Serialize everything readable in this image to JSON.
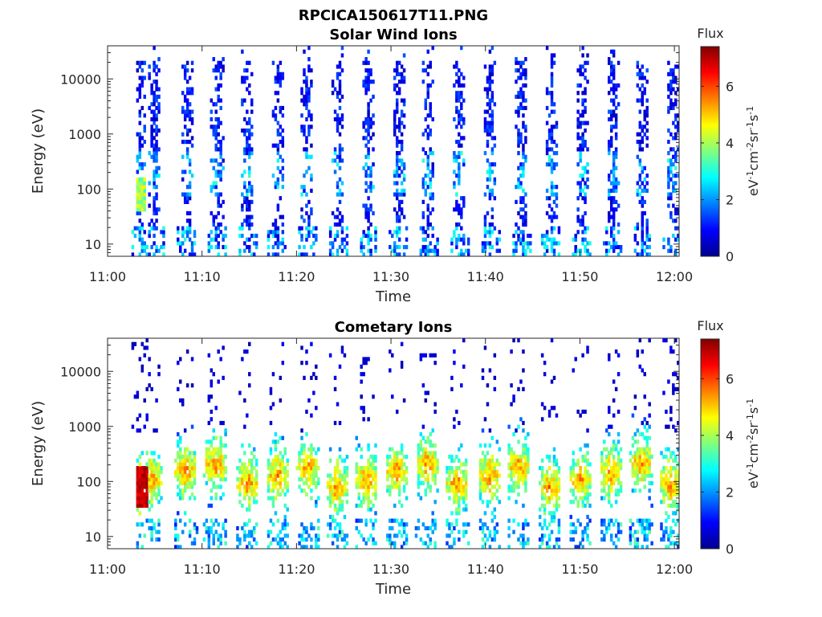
{
  "figure": {
    "title": "RPCICA150617T11.PNG"
  },
  "chart_data": [
    {
      "type": "heatmap",
      "title": "Solar Wind Ions",
      "xlabel": "Time",
      "ylabel": "Energy (eV)",
      "x_ticks": [
        "11:00",
        "11:10",
        "11:20",
        "11:30",
        "11:40",
        "11:50",
        "12:00"
      ],
      "x_range_minutes": [
        0,
        60.5
      ],
      "y_scale": "log",
      "y_ticks": [
        "10",
        "100",
        "1000",
        "10000"
      ],
      "y_range_eV": [
        6,
        40000
      ],
      "colorbar": {
        "title": "Flux",
        "label": "eV-1cm-2sr-1s-1",
        "ticks": [
          "0",
          "2",
          "4",
          "6"
        ],
        "range": [
          0,
          7.4
        ],
        "colormap": "jet"
      },
      "bursts_minute": [
        3.5,
        5.0,
        8.4,
        11.6,
        14.8,
        18.0,
        21.1,
        24.4,
        27.6,
        30.8,
        34.0,
        37.2,
        40.5,
        43.8,
        47.0,
        50.2,
        53.5,
        56.6,
        59.8
      ],
      "population": "solar-wind"
    },
    {
      "type": "heatmap",
      "title": "Cometary Ions",
      "xlabel": "Time",
      "ylabel": "Energy (eV)",
      "x_ticks": [
        "11:00",
        "11:10",
        "11:20",
        "11:30",
        "11:40",
        "11:50",
        "12:00"
      ],
      "x_range_minutes": [
        0,
        60.5
      ],
      "y_scale": "log",
      "y_ticks": [
        "10",
        "100",
        "1000",
        "10000"
      ],
      "y_range_eV": [
        6,
        40000
      ],
      "colorbar": {
        "title": "Flux",
        "label": "eV-1cm-2sr-1s-1",
        "ticks": [
          "0",
          "2",
          "4",
          "6"
        ],
        "range": [
          0,
          7.4
        ],
        "colormap": "jet"
      },
      "bursts_minute": [
        3.4,
        4.6,
        8.3,
        11.4,
        14.8,
        18.0,
        21.2,
        24.3,
        27.4,
        30.6,
        33.8,
        37.0,
        40.4,
        43.5,
        46.8,
        50.0,
        53.3,
        56.5,
        59.6
      ],
      "population": "cometary"
    }
  ]
}
